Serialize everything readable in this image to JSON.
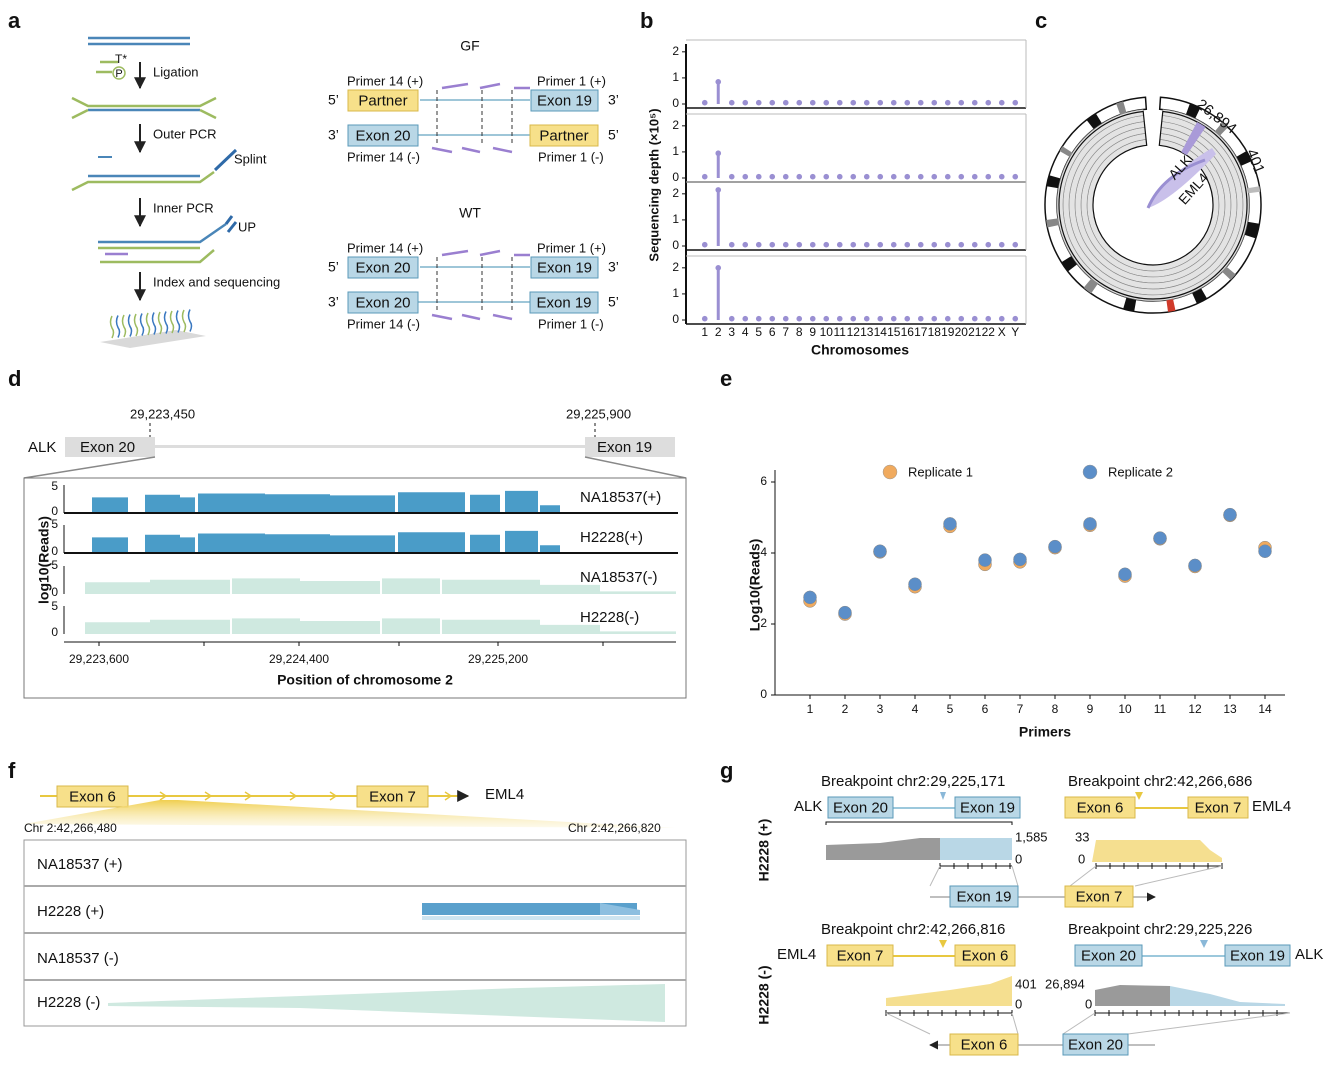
{
  "a": {
    "label": "a",
    "tstar": "T*",
    "p": "P",
    "steps": [
      "Ligation",
      "Outer PCR",
      "Inner PCR",
      "Index and sequencing"
    ],
    "splint": "Splint",
    "up": "UP",
    "gf": {
      "title": "GF",
      "primers_top": [
        "Primer 14 (+)",
        "Primer 1 (+)"
      ],
      "primers_bottom": [
        "Primer 14 (-)",
        "Primer 1 (-)"
      ],
      "top_strand": [
        "5’",
        "Partner",
        "Exon 19",
        "3’"
      ],
      "bottom_strand": [
        "3’",
        "Exon 20",
        "Partner",
        "5’"
      ]
    },
    "wt": {
      "title": "WT",
      "primers_top": [
        "Primer 14 (+)",
        "Primer 1 (+)"
      ],
      "primers_bottom": [
        "Primer 14 (-)",
        "Primer 1 (-)"
      ],
      "top_strand": [
        "5’",
        "Exon 20",
        "Exon 19",
        "3’"
      ],
      "bottom_strand": [
        "3’",
        "Exon 20",
        "Exon 19",
        "5’"
      ]
    }
  },
  "b": {
    "label": "b"
  },
  "c": {
    "label": "c",
    "values": [
      "26,894",
      "401"
    ],
    "genes": [
      "ALK",
      "EML4"
    ]
  },
  "d": {
    "label": "d",
    "positions": [
      "29,223,450",
      "29,225,900"
    ],
    "gene": "ALK",
    "exons": [
      "Exon 20",
      "Exon 19"
    ],
    "tracks": [
      "NA18537(+)",
      "H2228(+)",
      "NA18537(-)",
      "H2228(-)"
    ],
    "track_ticks": [
      "5",
      "0"
    ],
    "ylabel": "log10(Reads)",
    "xticks": [
      "29,223,600",
      "29,224,400",
      "29,225,200"
    ],
    "xlabel": "Position of chromosome 2"
  },
  "e": {
    "label": "e"
  },
  "f": {
    "label": "f",
    "exons": [
      "Exon 6",
      "Exon 7"
    ],
    "gene": "EML4",
    "range": [
      "Chr 2:42,266,480",
      "Chr 2:42,266,820"
    ],
    "rows": [
      "NA18537 (+)",
      "H2228 (+)",
      "NA18537 (-)",
      "H2228 (-)"
    ]
  },
  "g": {
    "label": "g",
    "row_labels": [
      "H2228 (+)",
      "H2228 (-)"
    ],
    "panels": [
      {
        "breakpoint": "Breakpoint  chr2:29,225,171",
        "gene": "ALK",
        "exons": [
          "Exon 20",
          "Exon 19"
        ],
        "ymax": "1,585",
        "ymin": "0"
      },
      {
        "breakpoint": "Breakpoint  chr2:42,266,686",
        "gene": "EML4",
        "exons": [
          "Exon 6",
          "Exon 7"
        ],
        "ymax": "33",
        "ymin": "0"
      },
      {
        "breakpoint": "Breakpoint chr2:42,266,816",
        "gene": "EML4",
        "exons": [
          "Exon 7",
          "Exon 6"
        ],
        "ymax": "401",
        "ymin": "0"
      },
      {
        "breakpoint": "Breakpoint chr2:29,225,226",
        "gene": "ALK",
        "exons": [
          "Exon 20",
          "Exon 19"
        ],
        "ymax": "26,894",
        "ymin": "0"
      }
    ],
    "fusions": [
      [
        "Exon 19",
        "Exon 7"
      ],
      [
        "Exon 6",
        "Exon 20"
      ]
    ]
  },
  "chart_data": [
    {
      "type": "stem",
      "ylabel": "Sequencing depth (×10⁵)",
      "xlabel": "Chromosomes",
      "color": "#9a8fd2",
      "categories": [
        "1",
        "2",
        "3",
        "4",
        "5",
        "6",
        "7",
        "8",
        "9",
        "10",
        "11",
        "12",
        "13",
        "14",
        "15",
        "16",
        "17",
        "18",
        "19",
        "20",
        "21",
        "22",
        "X",
        "Y"
      ],
      "ylim": [
        0,
        2.3
      ],
      "yticks": [
        0,
        1,
        2
      ],
      "series": [
        {
          "values": [
            0.05,
            0.85,
            0.05,
            0.05,
            0.05,
            0.05,
            0.05,
            0.05,
            0.05,
            0.05,
            0.05,
            0.05,
            0.05,
            0.05,
            0.05,
            0.05,
            0.05,
            0.05,
            0.05,
            0.05,
            0.05,
            0.05,
            0.05,
            0.05
          ]
        },
        {
          "values": [
            0.05,
            0.95,
            0.05,
            0.05,
            0.05,
            0.05,
            0.05,
            0.05,
            0.05,
            0.05,
            0.05,
            0.05,
            0.05,
            0.05,
            0.05,
            0.05,
            0.05,
            0.05,
            0.05,
            0.05,
            0.05,
            0.05,
            0.05,
            0.05
          ]
        },
        {
          "values": [
            0.05,
            2.15,
            0.05,
            0.05,
            0.05,
            0.05,
            0.05,
            0.05,
            0.05,
            0.05,
            0.05,
            0.05,
            0.05,
            0.05,
            0.05,
            0.05,
            0.05,
            0.05,
            0.05,
            0.05,
            0.05,
            0.05,
            0.05,
            0.05
          ]
        },
        {
          "values": [
            0.05,
            2.0,
            0.05,
            0.05,
            0.05,
            0.05,
            0.05,
            0.05,
            0.05,
            0.05,
            0.05,
            0.05,
            0.05,
            0.05,
            0.05,
            0.05,
            0.05,
            0.05,
            0.05,
            0.05,
            0.05,
            0.05,
            0.05,
            0.05
          ]
        }
      ]
    },
    {
      "type": "scatter",
      "xlabel": "Primers",
      "ylabel": "Log10(Reads)",
      "legend": "top",
      "x": [
        1,
        2,
        3,
        4,
        5,
        6,
        7,
        8,
        9,
        10,
        11,
        12,
        13,
        14
      ],
      "xlim": [
        0,
        15
      ],
      "xticks": [
        1,
        2,
        3,
        4,
        5,
        6,
        7,
        8,
        9,
        10,
        11,
        12,
        13,
        14
      ],
      "ylim": [
        0,
        6
      ],
      "yticks": [
        0,
        2,
        4,
        6
      ],
      "series": [
        {
          "name": "Replicate 1",
          "color": "#f0aa5e",
          "values": [
            2.65,
            2.28,
            4.03,
            3.05,
            4.75,
            3.68,
            3.75,
            4.15,
            4.78,
            3.35,
            4.4,
            3.62,
            5.06,
            4.15
          ]
        },
        {
          "name": "Replicate 2",
          "color": "#5b8ec8",
          "values": [
            2.75,
            2.32,
            4.05,
            3.12,
            4.82,
            3.8,
            3.82,
            4.18,
            4.82,
            3.4,
            4.42,
            3.65,
            5.08,
            4.05
          ]
        }
      ]
    }
  ]
}
